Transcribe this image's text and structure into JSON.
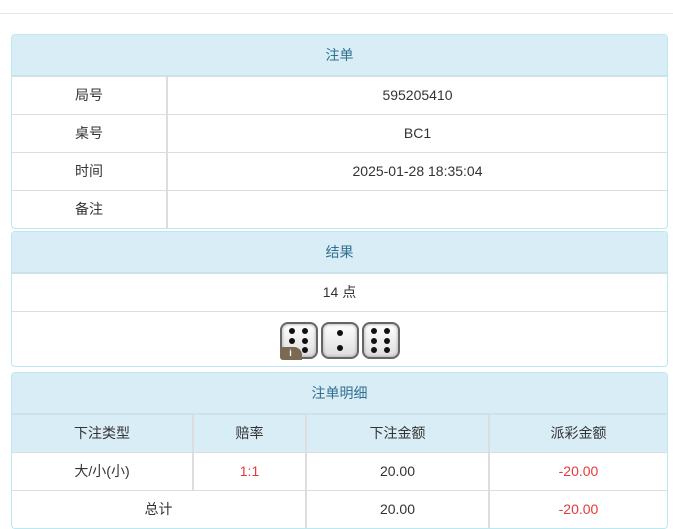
{
  "order": {
    "title": "注单",
    "rows": [
      {
        "label": "局号",
        "value": "595205410"
      },
      {
        "label": "桌号",
        "value": "BC1"
      },
      {
        "label": "时间",
        "value": "2025-01-28 18:35:04"
      },
      {
        "label": "备注",
        "value": ""
      }
    ]
  },
  "result": {
    "title": "结果",
    "points": "14 点",
    "dice": [
      6,
      2,
      6
    ],
    "info_badge": "i"
  },
  "detail": {
    "title": "注单明细",
    "columns": [
      "下注类型",
      "赔率",
      "下注金额",
      "派彩金额"
    ],
    "rows": [
      {
        "type": "大/小(小)",
        "odds": "1:1",
        "amount": "20.00",
        "payout": "-20.00"
      }
    ],
    "total": {
      "label": "总计",
      "amount": "20.00",
      "payout": "-20.00"
    }
  },
  "colors": {
    "header_bg": "#d9edf7",
    "header_text": "#31708f",
    "negative": "#e4393c"
  }
}
